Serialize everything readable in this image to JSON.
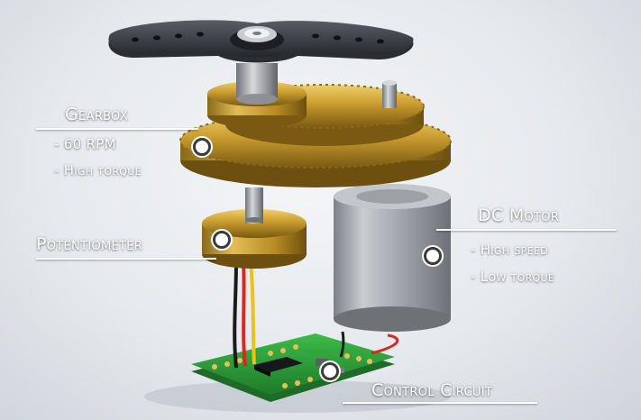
{
  "labels": {
    "gearbox": {
      "title": "Gearbox",
      "specs": [
        "- 60 RPM",
        "- High torque"
      ]
    },
    "potentiometer": {
      "title": "Potentiometer"
    },
    "dc_motor": {
      "title": "DC Motor",
      "specs": [
        "- High speed",
        "- Low torque"
      ]
    },
    "control_circuit": {
      "title": "Control Circuit"
    }
  },
  "colors": {
    "label_text": "#ffffff",
    "brass": "#c89b2f",
    "horn": "#3a3d42",
    "motor_can": "#a9adb3",
    "pcb": "#2f9a3a"
  }
}
